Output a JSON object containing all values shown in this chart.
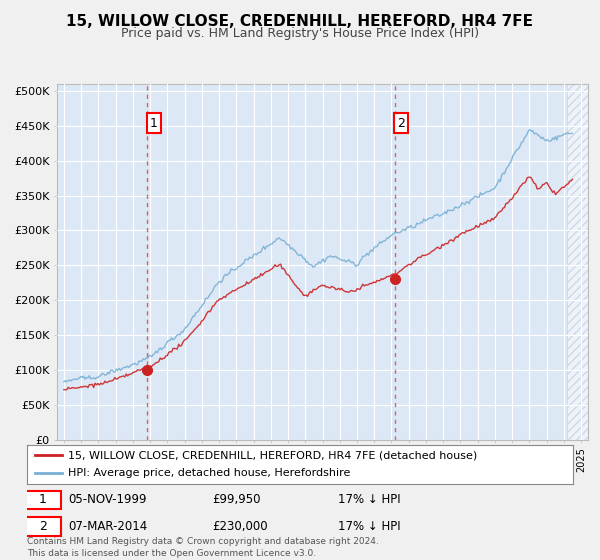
{
  "title_line1": "15, WILLOW CLOSE, CREDENHILL, HEREFORD, HR4 7FE",
  "title_line2": "Price paid vs. HM Land Registry's House Price Index (HPI)",
  "background_color": "#f0f0f0",
  "plot_bg_color": "#dce8f5",
  "grid_color": "#ffffff",
  "hpi_color": "#7ab0d4",
  "price_color": "#cc2222",
  "sale1_date": "05-NOV-1999",
  "sale1_price_str": "£99,950",
  "sale1_year": 1999.84,
  "sale1_hpi_pct": "17% ↓ HPI",
  "sale2_date": "07-MAR-2014",
  "sale2_price_str": "£230,000",
  "sale2_year": 2014.18,
  "sale2_hpi_pct": "17% ↓ HPI",
  "legend_line1": "15, WILLOW CLOSE, CREDENHILL, HEREFORD, HR4 7FE (detached house)",
  "legend_line2": "HPI: Average price, detached house, Herefordshire",
  "footnote": "Contains HM Land Registry data © Crown copyright and database right 2024.\nThis data is licensed under the Open Government Licence v3.0.",
  "yticks": [
    0,
    50000,
    100000,
    150000,
    200000,
    250000,
    300000,
    350000,
    400000,
    450000,
    500000
  ],
  "ylabels": [
    "£0",
    "£50K",
    "£100K",
    "£150K",
    "£200K",
    "£250K",
    "£300K",
    "£350K",
    "£400K",
    "£450K",
    "£500K"
  ],
  "ymax": 510000,
  "xmin": 1994.6,
  "xmax": 2025.4,
  "hatch_start": 2024.17
}
